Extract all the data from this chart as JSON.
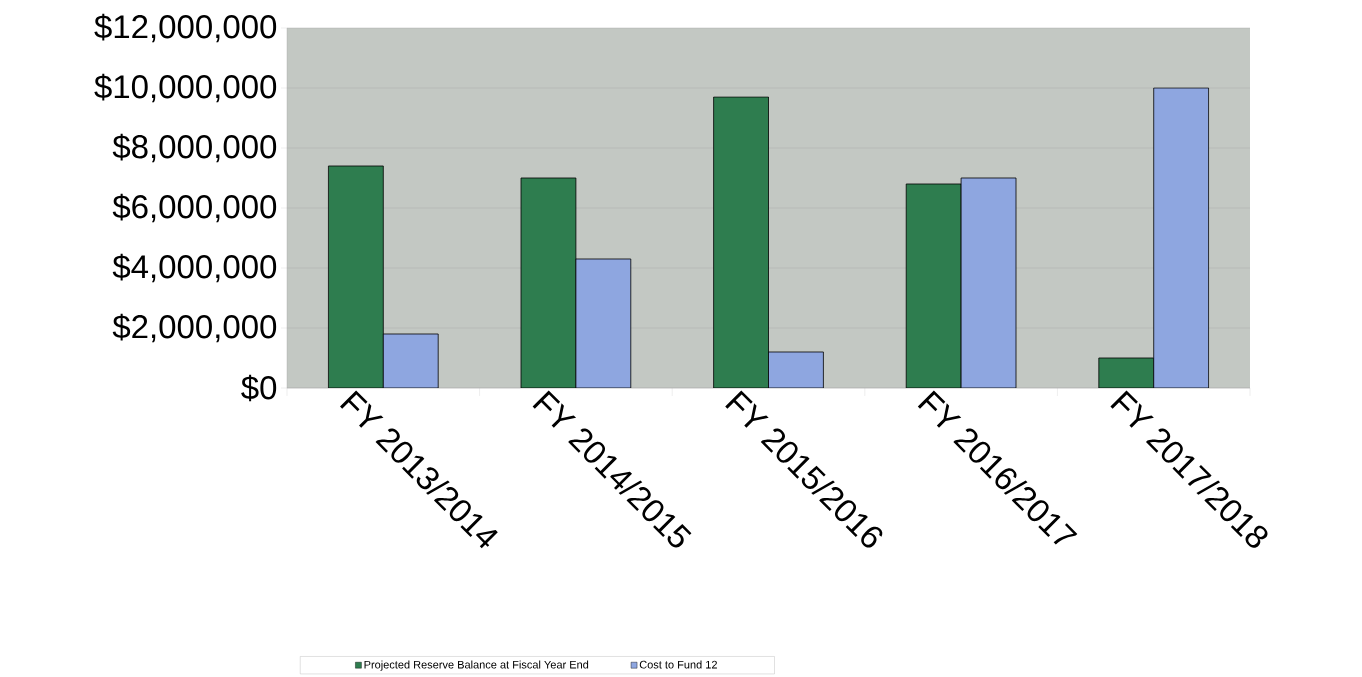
{
  "chart_data": {
    "type": "bar",
    "categories": [
      "FY 2013/2014",
      "FY 2014/2015",
      "FY 2015/2016",
      "FY 2016/2017",
      "FY 2017/2018"
    ],
    "series": [
      {
        "name": "Projected Reserve Balance at Fiscal Year End",
        "color": "#2e7d4f",
        "values": [
          7400000,
          7000000,
          9700000,
          6800000,
          1000000
        ]
      },
      {
        "name": "Cost to Fund 12",
        "color": "#8ea6e0",
        "values": [
          1800000,
          4300000,
          1200000,
          7000000,
          10000000
        ]
      }
    ],
    "ylim": [
      0,
      12000000
    ],
    "yticks": [
      {
        "value": 0,
        "label": "$0"
      },
      {
        "value": 2000000,
        "label": "$2,000,000"
      },
      {
        "value": 4000000,
        "label": "$4,000,000"
      },
      {
        "value": 6000000,
        "label": "$6,000,000"
      },
      {
        "value": 8000000,
        "label": "$8,000,000"
      },
      {
        "value": 10000000,
        "label": "$10,000,000"
      },
      {
        "value": 12000000,
        "label": "$12,000,000"
      }
    ],
    "grid": "y",
    "legend": "bottom"
  }
}
